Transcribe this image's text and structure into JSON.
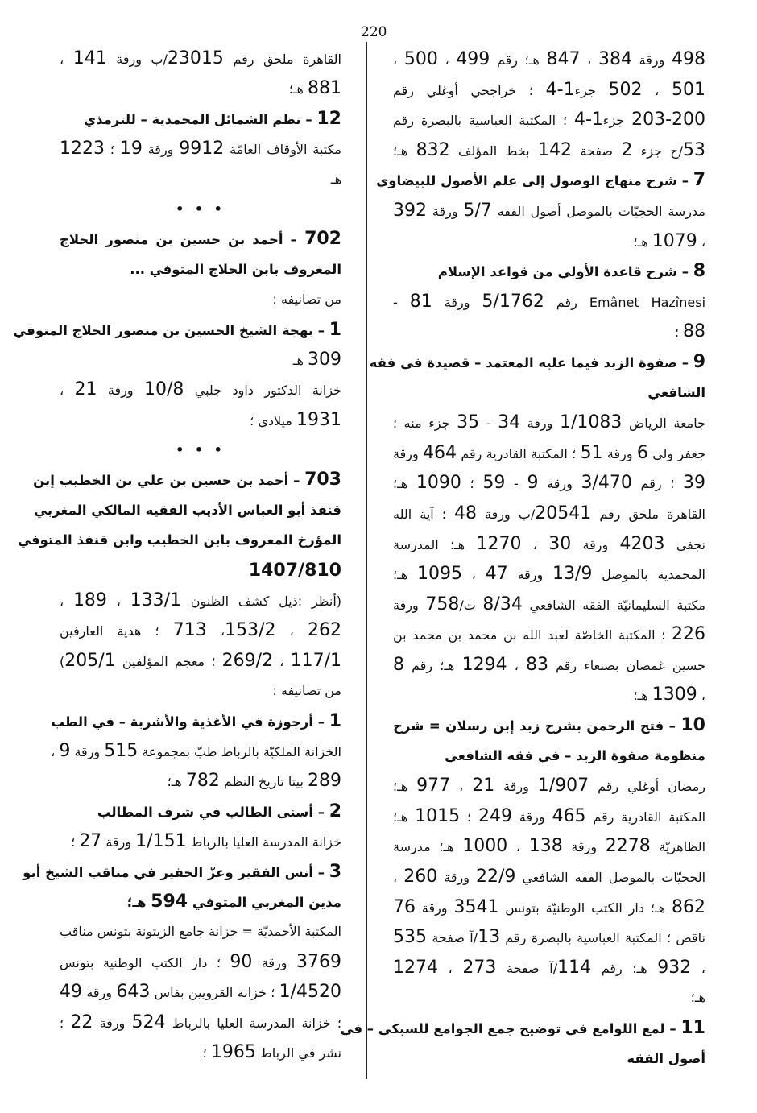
{
  "page_number": "220",
  "right_column": [
    {
      "text": "498 ورقة 384 ، 847 هـ؛ رقم 499 ، 500 ،",
      "bold": false,
      "justify": true
    },
    {
      "text": "501 ، 502 جزء1-4 ؛ خراجحي أوغلي رقم",
      "bold": false,
      "justify": true
    },
    {
      "text": "203-200 جزء1-4 ؛ المكتبة العباسية بالبصرة رقم",
      "bold": false,
      "justify": true
    },
    {
      "text": "53/ح جزء 2 صفحة 142 بخط المؤلف 832 هـ؛",
      "bold": false,
      "justify": true
    },
    {
      "text": "7 – شرح منهاج الوصول إلى علم الأصول للبيضاوي",
      "bold": true,
      "justify": true
    },
    {
      "text": "مدرسة الحجيّات بالموصل أصول الفقه 5/7 ورقة 392",
      "bold": false,
      "justify": true
    },
    {
      "text": "، 1079 هـ؛",
      "bold": false,
      "justify": false
    },
    {
      "text": "8 – شرح قاعدة الأولي من قواعد الإسلام",
      "bold": true,
      "justify": false
    },
    {
      "text": "Emânet Hazînesi رقم 5/1762 ورقة 81 -",
      "bold": false,
      "justify": true
    },
    {
      "text": "88 ؛",
      "bold": false,
      "justify": false
    },
    {
      "text": "9 – صفوة الزبد فيما عليه المعتمد – قصيدة في فقه",
      "bold": true,
      "justify": true
    },
    {
      "text": "الشافعي",
      "bold": true,
      "justify": false
    },
    {
      "text": "جامعة الرياض 1/1083 ورقة 34 - 35 جزء منه ؛",
      "bold": false,
      "justify": true
    },
    {
      "text": "جعفر ولي 6 ورقة 51 ؛ المكتبة القادرية رقم 464 ورقة",
      "bold": false,
      "justify": true
    },
    {
      "text": "39 ؛ رقم 3/470 ورقة 9 - 59 ؛ 1090 هـ؛",
      "bold": false,
      "justify": true
    },
    {
      "text": "القاهرة ملحق رقم 20541/ب ورقة 48 ؛ آية الله",
      "bold": false,
      "justify": true
    },
    {
      "text": "نجفي 4203 ورقة 30 ، 1270 هـ؛ المدرسة",
      "bold": false,
      "justify": true
    },
    {
      "text": "المحمدية بالموصل 13/9 ورقة 47 ، 1095 هـ؛",
      "bold": false,
      "justify": true
    },
    {
      "text": "مكتبة السليمانيّة الفقه الشافعي 8/34 ت/758 ورقة",
      "bold": false,
      "justify": true
    },
    {
      "text": "226 ؛ المكتبة الخاصّة لعبد الله بن محمد بن محمد بن",
      "bold": false,
      "justify": true
    },
    {
      "text": "حسين غمضان بصنعاء رقم 83 ، 1294 هـ؛ رقم 8",
      "bold": false,
      "justify": true
    },
    {
      "text": "، 1309 هـ؛",
      "bold": false,
      "justify": false
    },
    {
      "text": "10 – فتح الرحمن بشرح زبد إبن رسلان = شرح",
      "bold": true,
      "justify": true
    },
    {
      "text": "منظومة صفوة الزبد – في فقه الشافعي",
      "bold": true,
      "justify": false
    },
    {
      "text": "رمضان أوغلي رقم 1/907 ورقة 21 ، 977 هـ؛",
      "bold": false,
      "justify": true
    },
    {
      "text": "المكتبة القادرية رقم 465 ورقة 249 ؛ 1015 هـ؛",
      "bold": false,
      "justify": true
    },
    {
      "text": "الظاهريّة 2278 ورقة 138 ، 1000 هـ؛ مدرسة",
      "bold": false,
      "justify": true
    },
    {
      "text": "الحجيّات بالموصل الفقه الشافعي 22/9 ورقة 260 ،",
      "bold": false,
      "justify": true
    },
    {
      "text": "862 هـ؛ دار الكتب الوطنيّة بتونس 3541 ورقة 76",
      "bold": false,
      "justify": true
    },
    {
      "text": "ناقص ؛ المكتبة العباسية بالبصرة رقم 13/آ صفحة 535",
      "bold": false,
      "justify": true
    },
    {
      "text": "، 932 هـ؛ رقم 114/آ صفحة 273 ، 1274",
      "bold": false,
      "justify": true
    },
    {
      "text": "هـ؛",
      "bold": false,
      "justify": false
    },
    {
      "text": "11 – لمع اللوامع في توضيح جمع الجوامع للسبكي – في",
      "bold": true,
      "justify": true
    },
    {
      "text": "أصول الفقه",
      "bold": true,
      "justify": false
    }
  ],
  "left_column": [
    {
      "text": "القاهرة ملحق رقم 23015/ب ورقة 141 ،",
      "bold": false,
      "justify": true
    },
    {
      "text": "881 هـ؛",
      "bold": false,
      "justify": false
    },
    {
      "text": "12 – نظم الشمائل المحمدية – للترمذي",
      "bold": true,
      "justify": false
    },
    {
      "text": "مكتبة الأوقاف العامّة 9912 ورقة 19 ؛ 1223",
      "bold": false,
      "justify": true
    },
    {
      "text": "هـ",
      "bold": false,
      "justify": false
    },
    {
      "text": "• • •",
      "bold": false,
      "justify": false,
      "separator": true
    },
    {
      "text": "702 – أحمد بن حسين بن منصور الحلاج",
      "bold": true,
      "justify": true
    },
    {
      "text": "المعروف بابن الحلاج المتوفي ...",
      "bold": true,
      "justify": false
    },
    {
      "text": "من تصانيفه :",
      "bold": false,
      "justify": false
    },
    {
      "text": "1 – بهجة الشيخ الحسين بن منصور الحلاج المتوفي",
      "bold": true,
      "justify": true
    },
    {
      "text": "309 هـ",
      "bold": false,
      "justify": false
    },
    {
      "text": "خزانة الدكتور داود جلبي 10/8 ورقة 21 ،",
      "bold": false,
      "justify": true
    },
    {
      "text": "1931 ميلادي ؛",
      "bold": false,
      "justify": false
    },
    {
      "text": "• • •",
      "bold": false,
      "justify": false,
      "separator": true
    },
    {
      "text": "703 – أحمد بن حسين بن علي بن الخطيب إبن",
      "bold": true,
      "justify": true
    },
    {
      "text": "قنفذ أبو العباس الأديب الفقيه المالكي المغربي",
      "bold": true,
      "justify": true
    },
    {
      "text": "المؤرخ المعروف بابن الخطيب وابن قنفذ المتوفي",
      "bold": true,
      "justify": true
    },
    {
      "text": "1407/810",
      "bold": true,
      "justify": false
    },
    {
      "text": "(أنظر :ذيل كشف الظنون 133/1 ، 189 ،",
      "bold": false,
      "justify": true
    },
    {
      "text": "262 ، 153/2، 713 ؛ هدية العارفين",
      "bold": false,
      "justify": true
    },
    {
      "text": "117/1 ، 269/2 ؛ معجم المؤلفين 205/1)",
      "bold": false,
      "justify": true
    },
    {
      "text": "من تصانيفه :",
      "bold": false,
      "justify": false
    },
    {
      "text": "1 – أرجوزة في الأغذية والأشربة – في الطب",
      "bold": true,
      "justify": false
    },
    {
      "text": "الخزانة الملكيّة بالرباط طبّ بمجموعة 515 ورقة 9 ،",
      "bold": false,
      "justify": true
    },
    {
      "text": "289 بيتا تاريخ النظم 782 هـ؛",
      "bold": false,
      "justify": false
    },
    {
      "text": "2 – أسنى الطالب في شرف المطالب",
      "bold": true,
      "justify": false
    },
    {
      "text": "خزانة المدرسة العليا بالرباط 1/151 ورقة 27 ؛",
      "bold": false,
      "justify": false
    },
    {
      "text": "3 – أنس الفقير وعزّ الحقير في مناقب الشيخ أبو",
      "bold": true,
      "justify": true
    },
    {
      "text": "مدين المغربي المتوفي 594 هـ؛",
      "bold": true,
      "justify": false
    },
    {
      "text": "المكتبة الأحمديّة = خزانة جامع الزيتونة بتونس مناقب",
      "bold": false,
      "justify": true
    },
    {
      "text": "3769 ورقة 90 ؛ دار الكتب الوطنية بتونس",
      "bold": false,
      "justify": true
    },
    {
      "text": "1/4520 ؛ خزانة القرويين بفاس 643 ورقة 49",
      "bold": false,
      "justify": true
    },
    {
      "text": "؛ خزانة المدرسة العليا بالرباط 524 ورقة 22 ؛",
      "bold": false,
      "justify": true
    },
    {
      "text": "نشر في الرباط 1965 ؛",
      "bold": false,
      "justify": false
    }
  ]
}
